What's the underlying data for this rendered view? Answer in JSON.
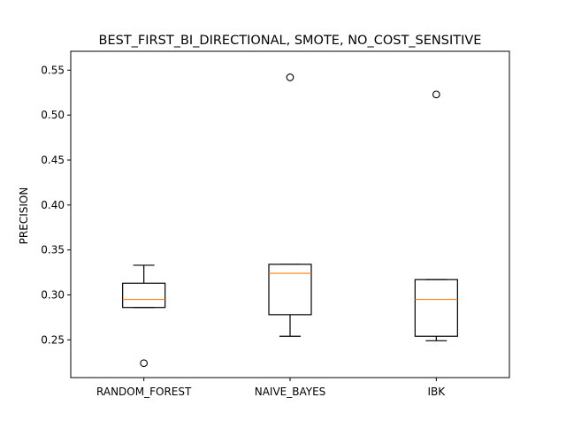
{
  "chart_data": {
    "type": "box",
    "title": "BEST_FIRST_BI_DIRECTIONAL, SMOTE, NO_COST_SENSITIVE",
    "xlabel": "",
    "ylabel": "PRECISION",
    "ylim": [
      0.208,
      0.571
    ],
    "yticks": [
      0.25,
      0.3,
      0.35,
      0.4,
      0.45,
      0.5,
      0.55
    ],
    "ytick_labels": [
      "0.25",
      "0.30",
      "0.35",
      "0.40",
      "0.45",
      "0.50",
      "0.55"
    ],
    "grid": false,
    "categories": [
      "RANDOM_FOREST",
      "NAIVE_BAYES",
      "IBK"
    ],
    "boxes": [
      {
        "category": "RANDOM_FOREST",
        "whisker_low": 0.286,
        "q1": 0.286,
        "median": 0.295,
        "q3": 0.313,
        "whisker_high": 0.333,
        "outliers": [
          0.224
        ]
      },
      {
        "category": "NAIVE_BAYES",
        "whisker_low": 0.254,
        "q1": 0.278,
        "median": 0.324,
        "q3": 0.334,
        "whisker_high": 0.334,
        "outliers": [
          0.542
        ]
      },
      {
        "category": "IBK",
        "whisker_low": 0.249,
        "q1": 0.254,
        "median": 0.295,
        "q3": 0.317,
        "whisker_high": 0.317,
        "outliers": [
          0.523
        ]
      }
    ],
    "colors": {
      "box": "#000000",
      "median": "#ff7f0e",
      "outlier": "#000000",
      "background": "#ffffff"
    }
  }
}
